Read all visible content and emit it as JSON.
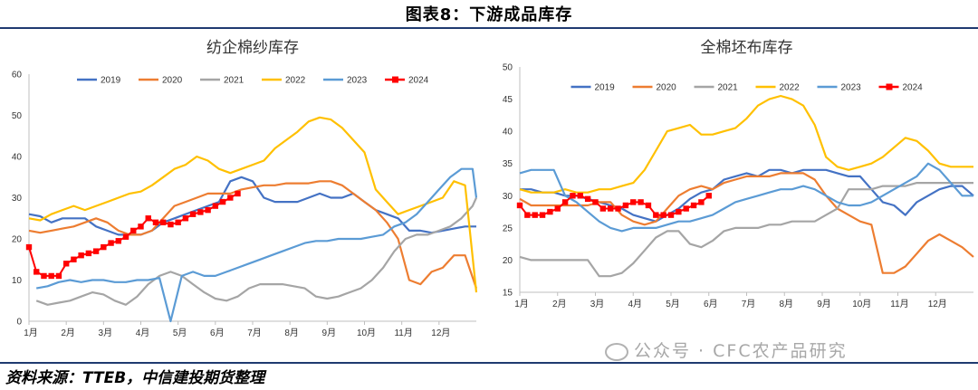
{
  "header": {
    "title": "图表8：下游成品库存"
  },
  "footer": {
    "source": "资料来源：TTEB，中信建投期货整理"
  },
  "watermark": {
    "text": "公众号 · CFC农产品研究"
  },
  "chart_data": [
    {
      "type": "line",
      "title": "纺企棉纱库存",
      "xlabel": "",
      "ylabel": "",
      "ylim": [
        0,
        60
      ],
      "xlim": [
        0,
        12
      ],
      "yticks": [
        0,
        10,
        20,
        30,
        40,
        50,
        60
      ],
      "xtick_labels": [
        "1月",
        "2月",
        "3月",
        "4月",
        "5月",
        "6月",
        "7月",
        "8月",
        "9月",
        "10月",
        "11月",
        "12月"
      ],
      "legend_position": "top",
      "series": [
        {
          "name": "2019",
          "color": "#4472c4",
          "marker": false,
          "x": [
            0,
            0.3,
            0.6,
            0.9,
            1.2,
            1.5,
            1.8,
            2.1,
            2.4,
            2.7,
            3.0,
            3.3,
            3.6,
            3.9,
            4.2,
            4.5,
            4.8,
            5.1,
            5.4,
            5.7,
            6.0,
            6.3,
            6.6,
            6.9,
            7.2,
            7.5,
            7.8,
            8.1,
            8.4,
            8.7,
            9.0,
            9.3,
            9.6,
            9.9,
            10.2,
            10.5,
            10.8,
            11.1,
            11.4,
            11.7,
            12.0
          ],
          "y": [
            26,
            25.5,
            24,
            25,
            25,
            25,
            23,
            22,
            21,
            21,
            21,
            22,
            24,
            25,
            26,
            27,
            28,
            29,
            34,
            35,
            34,
            30,
            29,
            29,
            29,
            30,
            31,
            30,
            30,
            31,
            29,
            27,
            26,
            25,
            22,
            22,
            21.5,
            22,
            22.5,
            23,
            23
          ]
        },
        {
          "name": "2020",
          "color": "#ed7d31",
          "marker": false,
          "x": [
            0,
            0.3,
            0.6,
            0.9,
            1.2,
            1.5,
            1.8,
            2.1,
            2.4,
            2.7,
            3.0,
            3.3,
            3.6,
            3.9,
            4.2,
            4.5,
            4.8,
            5.1,
            5.4,
            5.7,
            6.0,
            6.3,
            6.6,
            6.9,
            7.2,
            7.5,
            7.8,
            8.1,
            8.4,
            8.7,
            9.0,
            9.3,
            9.6,
            9.9,
            10.2,
            10.5,
            10.8,
            11.1,
            11.4,
            11.7,
            12.0
          ],
          "y": [
            22,
            21.5,
            22,
            22.5,
            23,
            24,
            25,
            24,
            22,
            21,
            21,
            22,
            25,
            28,
            29,
            30,
            31,
            31,
            31,
            32,
            32.5,
            33,
            33,
            33.5,
            33.5,
            33.5,
            34,
            34,
            33,
            31,
            29,
            27,
            24,
            20,
            10,
            9,
            12,
            13,
            16,
            16,
            8
          ]
        },
        {
          "name": "2021",
          "color": "#a5a5a5",
          "marker": false,
          "x": [
            0.2,
            0.5,
            0.8,
            1.1,
            1.4,
            1.7,
            2.0,
            2.3,
            2.6,
            2.9,
            3.2,
            3.5,
            3.8,
            4.1,
            4.4,
            4.7,
            5.0,
            5.3,
            5.6,
            5.9,
            6.2,
            6.5,
            6.8,
            7.1,
            7.4,
            7.7,
            8.0,
            8.3,
            8.6,
            8.9,
            9.2,
            9.5,
            9.8,
            10.1,
            10.4,
            10.7,
            11.0,
            11.3,
            11.6,
            11.9,
            12.0
          ],
          "y": [
            5,
            4,
            4.5,
            5,
            6,
            7,
            6.5,
            5,
            4,
            6,
            9,
            11,
            12,
            11,
            9,
            7,
            5.5,
            5,
            6,
            8,
            9,
            9,
            9,
            8.5,
            8,
            6,
            5.5,
            6,
            7,
            8,
            10,
            13,
            17,
            20,
            21,
            21,
            22,
            23,
            25,
            28,
            30
          ]
        },
        {
          "name": "2022",
          "color": "#ffc000",
          "marker": false,
          "x": [
            0,
            0.3,
            0.6,
            0.9,
            1.2,
            1.5,
            1.8,
            2.1,
            2.4,
            2.7,
            3.0,
            3.3,
            3.6,
            3.9,
            4.2,
            4.5,
            4.8,
            5.1,
            5.4,
            5.7,
            6.0,
            6.3,
            6.6,
            6.9,
            7.2,
            7.5,
            7.8,
            8.1,
            8.4,
            8.7,
            9.0,
            9.3,
            9.6,
            9.9,
            10.2,
            10.5,
            10.8,
            11.1,
            11.4,
            11.7,
            12.0
          ],
          "y": [
            25,
            24.5,
            26,
            27,
            28,
            27,
            28,
            29,
            30,
            31,
            31.5,
            33,
            35,
            37,
            38,
            40,
            39,
            37,
            36,
            37,
            38,
            39,
            42,
            44,
            46,
            48.5,
            49.5,
            49,
            47,
            44,
            41,
            32,
            29,
            26,
            27,
            28,
            29,
            30,
            34,
            33,
            7
          ]
        },
        {
          "name": "2023",
          "color": "#5b9bd5",
          "marker": false,
          "x": [
            0.2,
            0.5,
            0.8,
            1.1,
            1.4,
            1.7,
            2.0,
            2.3,
            2.6,
            2.9,
            3.2,
            3.5,
            3.8,
            4.1,
            4.4,
            4.7,
            5.0,
            5.3,
            5.6,
            5.9,
            6.2,
            6.5,
            6.8,
            7.1,
            7.4,
            7.7,
            8.0,
            8.3,
            8.6,
            8.9,
            9.2,
            9.5,
            9.8,
            10.1,
            10.4,
            10.7,
            11.0,
            11.3,
            11.6,
            11.9,
            12.0
          ],
          "y": [
            8,
            8.5,
            9.5,
            10,
            9.5,
            10,
            10,
            9.5,
            9.5,
            10,
            10,
            10.5,
            0,
            11,
            12,
            11,
            11,
            12,
            13,
            14,
            15,
            16,
            17,
            18,
            19,
            19.5,
            19.5,
            20,
            20,
            20,
            20.5,
            21,
            23,
            24,
            26,
            29,
            32,
            35,
            37,
            37,
            30
          ]
        },
        {
          "name": "2024",
          "color": "#ff0000",
          "marker": true,
          "x": [
            0,
            0.2,
            0.4,
            0.6,
            0.8,
            1.0,
            1.2,
            1.4,
            1.6,
            1.8,
            2.0,
            2.2,
            2.4,
            2.6,
            2.8,
            3.0,
            3.2,
            3.4,
            3.6,
            3.8,
            4.0,
            4.2,
            4.4,
            4.6,
            4.8,
            5.0,
            5.2,
            5.4,
            5.6
          ],
          "y": [
            18,
            12,
            11,
            11,
            11,
            14,
            15,
            16,
            16.5,
            17,
            18,
            19,
            19.5,
            20.5,
            22,
            23,
            25,
            24,
            24,
            23.5,
            24,
            25,
            26,
            26.5,
            27,
            28,
            29,
            30,
            31
          ]
        }
      ]
    },
    {
      "type": "line",
      "title": "全棉坯布库存",
      "xlabel": "",
      "ylabel": "",
      "ylim": [
        15,
        50
      ],
      "xlim": [
        0,
        12
      ],
      "yticks": [
        15,
        20,
        25,
        30,
        35,
        40,
        45,
        50
      ],
      "xtick_labels": [
        "1月",
        "2月",
        "3月",
        "4月",
        "5月",
        "6月",
        "7月",
        "8月",
        "9月",
        "10月",
        "11月",
        "12月"
      ],
      "legend_position": "top",
      "series": [
        {
          "name": "2019",
          "color": "#4472c4",
          "marker": false,
          "x": [
            0,
            0.3,
            0.6,
            0.9,
            1.2,
            1.5,
            1.8,
            2.1,
            2.4,
            2.7,
            3.0,
            3.3,
            3.6,
            3.9,
            4.2,
            4.5,
            4.8,
            5.1,
            5.4,
            5.7,
            6.0,
            6.3,
            6.6,
            6.9,
            7.2,
            7.5,
            7.8,
            8.1,
            8.4,
            8.7,
            9.0,
            9.3,
            9.6,
            9.9,
            10.2,
            10.5,
            10.8,
            11.1,
            11.4,
            11.7,
            12.0
          ],
          "y": [
            31,
            31,
            30.5,
            30.5,
            30,
            30,
            29.5,
            29,
            28.5,
            28,
            27,
            26.5,
            26,
            27,
            28,
            29.5,
            30.5,
            31,
            32.5,
            33,
            33.5,
            33,
            34,
            34,
            33.5,
            34,
            34,
            34,
            33.5,
            33,
            33,
            31,
            29,
            28.5,
            27,
            29,
            30,
            31,
            31.5,
            31.5,
            30
          ]
        },
        {
          "name": "2020",
          "color": "#ed7d31",
          "marker": false,
          "x": [
            0,
            0.3,
            0.6,
            0.9,
            1.2,
            1.5,
            1.8,
            2.1,
            2.4,
            2.7,
            3.0,
            3.3,
            3.6,
            3.9,
            4.2,
            4.5,
            4.8,
            5.1,
            5.4,
            5.7,
            6.0,
            6.3,
            6.6,
            6.9,
            7.2,
            7.5,
            7.8,
            8.1,
            8.4,
            8.7,
            9.0,
            9.3,
            9.6,
            9.9,
            10.2,
            10.5,
            10.8,
            11.1,
            11.4,
            11.7,
            12.0
          ],
          "y": [
            29.5,
            28.5,
            28.5,
            28.5,
            28.5,
            28.5,
            28.5,
            29,
            29,
            27,
            26,
            25.5,
            26,
            28,
            30,
            31,
            31.5,
            31,
            32,
            32.5,
            33,
            33,
            33,
            33.5,
            33.5,
            33.5,
            32.5,
            30,
            28,
            27,
            26,
            25.5,
            18,
            18,
            19,
            21,
            23,
            24,
            23,
            22,
            20.5
          ]
        },
        {
          "name": "2021",
          "color": "#a5a5a5",
          "marker": false,
          "x": [
            0,
            0.3,
            0.6,
            0.9,
            1.2,
            1.5,
            1.8,
            2.1,
            2.4,
            2.7,
            3.0,
            3.3,
            3.6,
            3.9,
            4.2,
            4.5,
            4.8,
            5.1,
            5.4,
            5.7,
            6.0,
            6.3,
            6.6,
            6.9,
            7.2,
            7.5,
            7.8,
            8.1,
            8.4,
            8.7,
            9.0,
            9.3,
            9.6,
            9.9,
            10.2,
            10.5,
            10.8,
            11.1,
            11.4,
            11.7,
            12.0
          ],
          "y": [
            20.5,
            20,
            20,
            20,
            20,
            20,
            20,
            17.5,
            17.5,
            18,
            19.5,
            21.5,
            23.5,
            24.5,
            24.5,
            22.5,
            22,
            23,
            24.5,
            25,
            25,
            25,
            25.5,
            25.5,
            26,
            26,
            26,
            27,
            28,
            31,
            31,
            31,
            31.5,
            31.5,
            31.5,
            32,
            32,
            32,
            32,
            32,
            32
          ]
        },
        {
          "name": "2022",
          "color": "#ffc000",
          "marker": false,
          "x": [
            0,
            0.3,
            0.6,
            0.9,
            1.2,
            1.5,
            1.8,
            2.1,
            2.4,
            2.7,
            3.0,
            3.3,
            3.6,
            3.9,
            4.2,
            4.5,
            4.8,
            5.1,
            5.4,
            5.7,
            6.0,
            6.3,
            6.6,
            6.9,
            7.2,
            7.5,
            7.8,
            8.1,
            8.4,
            8.7,
            9.0,
            9.3,
            9.6,
            9.9,
            10.2,
            10.5,
            10.8,
            11.1,
            11.4,
            11.7,
            12.0
          ],
          "y": [
            31,
            30.5,
            30.5,
            30.5,
            31,
            30.5,
            30.5,
            31,
            31,
            31.5,
            32,
            34,
            37,
            40,
            40.5,
            41,
            39.5,
            39.5,
            40,
            40.5,
            42,
            44,
            45,
            45.5,
            45,
            44,
            41,
            36,
            34.5,
            34,
            34.5,
            35,
            36,
            37.5,
            39,
            38.5,
            37,
            35,
            34.5,
            34.5,
            34.5
          ]
        },
        {
          "name": "2023",
          "color": "#5b9bd5",
          "marker": false,
          "x": [
            0,
            0.3,
            0.6,
            0.9,
            1.2,
            1.5,
            1.8,
            2.1,
            2.4,
            2.7,
            3.0,
            3.3,
            3.6,
            3.9,
            4.2,
            4.5,
            4.8,
            5.1,
            5.4,
            5.7,
            6.0,
            6.3,
            6.6,
            6.9,
            7.2,
            7.5,
            7.8,
            8.1,
            8.4,
            8.7,
            9.0,
            9.3,
            9.6,
            9.9,
            10.2,
            10.5,
            10.8,
            11.1,
            11.4,
            11.7,
            12.0
          ],
          "y": [
            33.5,
            34,
            34,
            34,
            30,
            29,
            27.5,
            26,
            25,
            24.5,
            25,
            25,
            25,
            25.5,
            26,
            26,
            26.5,
            27,
            28,
            29,
            29.5,
            30,
            30.5,
            31,
            31,
            31.5,
            31,
            30,
            29,
            28.5,
            28.5,
            29,
            30,
            31,
            32,
            33,
            35,
            34,
            32,
            30,
            30
          ]
        },
        {
          "name": "2024",
          "color": "#ff0000",
          "marker": true,
          "x": [
            0,
            0.2,
            0.4,
            0.6,
            0.8,
            1.0,
            1.2,
            1.4,
            1.6,
            1.8,
            2.0,
            2.2,
            2.4,
            2.6,
            2.8,
            3.0,
            3.2,
            3.4,
            3.6,
            3.8,
            4.0,
            4.2,
            4.4,
            4.6,
            4.8,
            5.0
          ],
          "y": [
            28.5,
            27,
            27,
            27,
            27.5,
            28,
            29,
            30,
            30,
            29.5,
            29,
            28,
            28,
            28,
            28.5,
            29,
            29,
            28.5,
            27,
            27,
            27,
            27.5,
            28,
            28.5,
            29,
            30
          ]
        }
      ]
    }
  ]
}
